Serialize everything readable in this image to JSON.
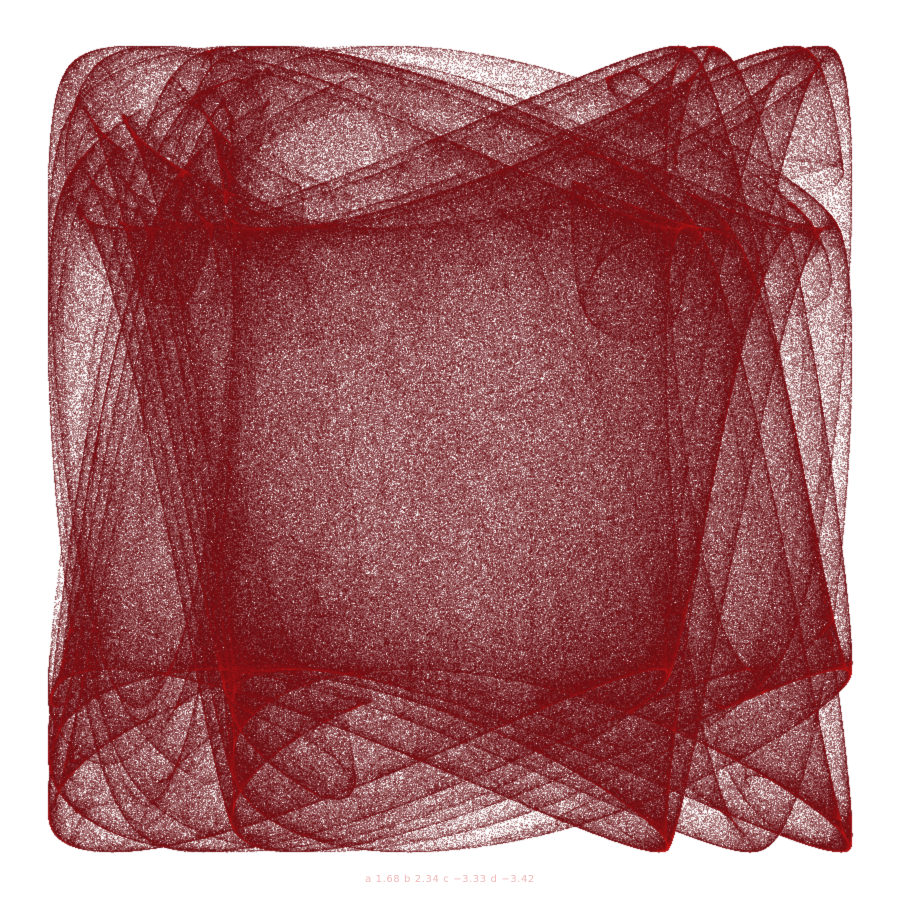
{
  "attractor": {
    "kind": "clifford",
    "params": {
      "a": 1.68,
      "b": 2.34,
      "c": -3.33,
      "d": -3.42
    },
    "accent_color": "#e01717",
    "haze_color": "#6a0d12",
    "background": "#ffffff"
  },
  "caption": {
    "text": "a 1.68  b 2.34  c −3.33  d −3.42",
    "color": "#f2b9b9"
  }
}
